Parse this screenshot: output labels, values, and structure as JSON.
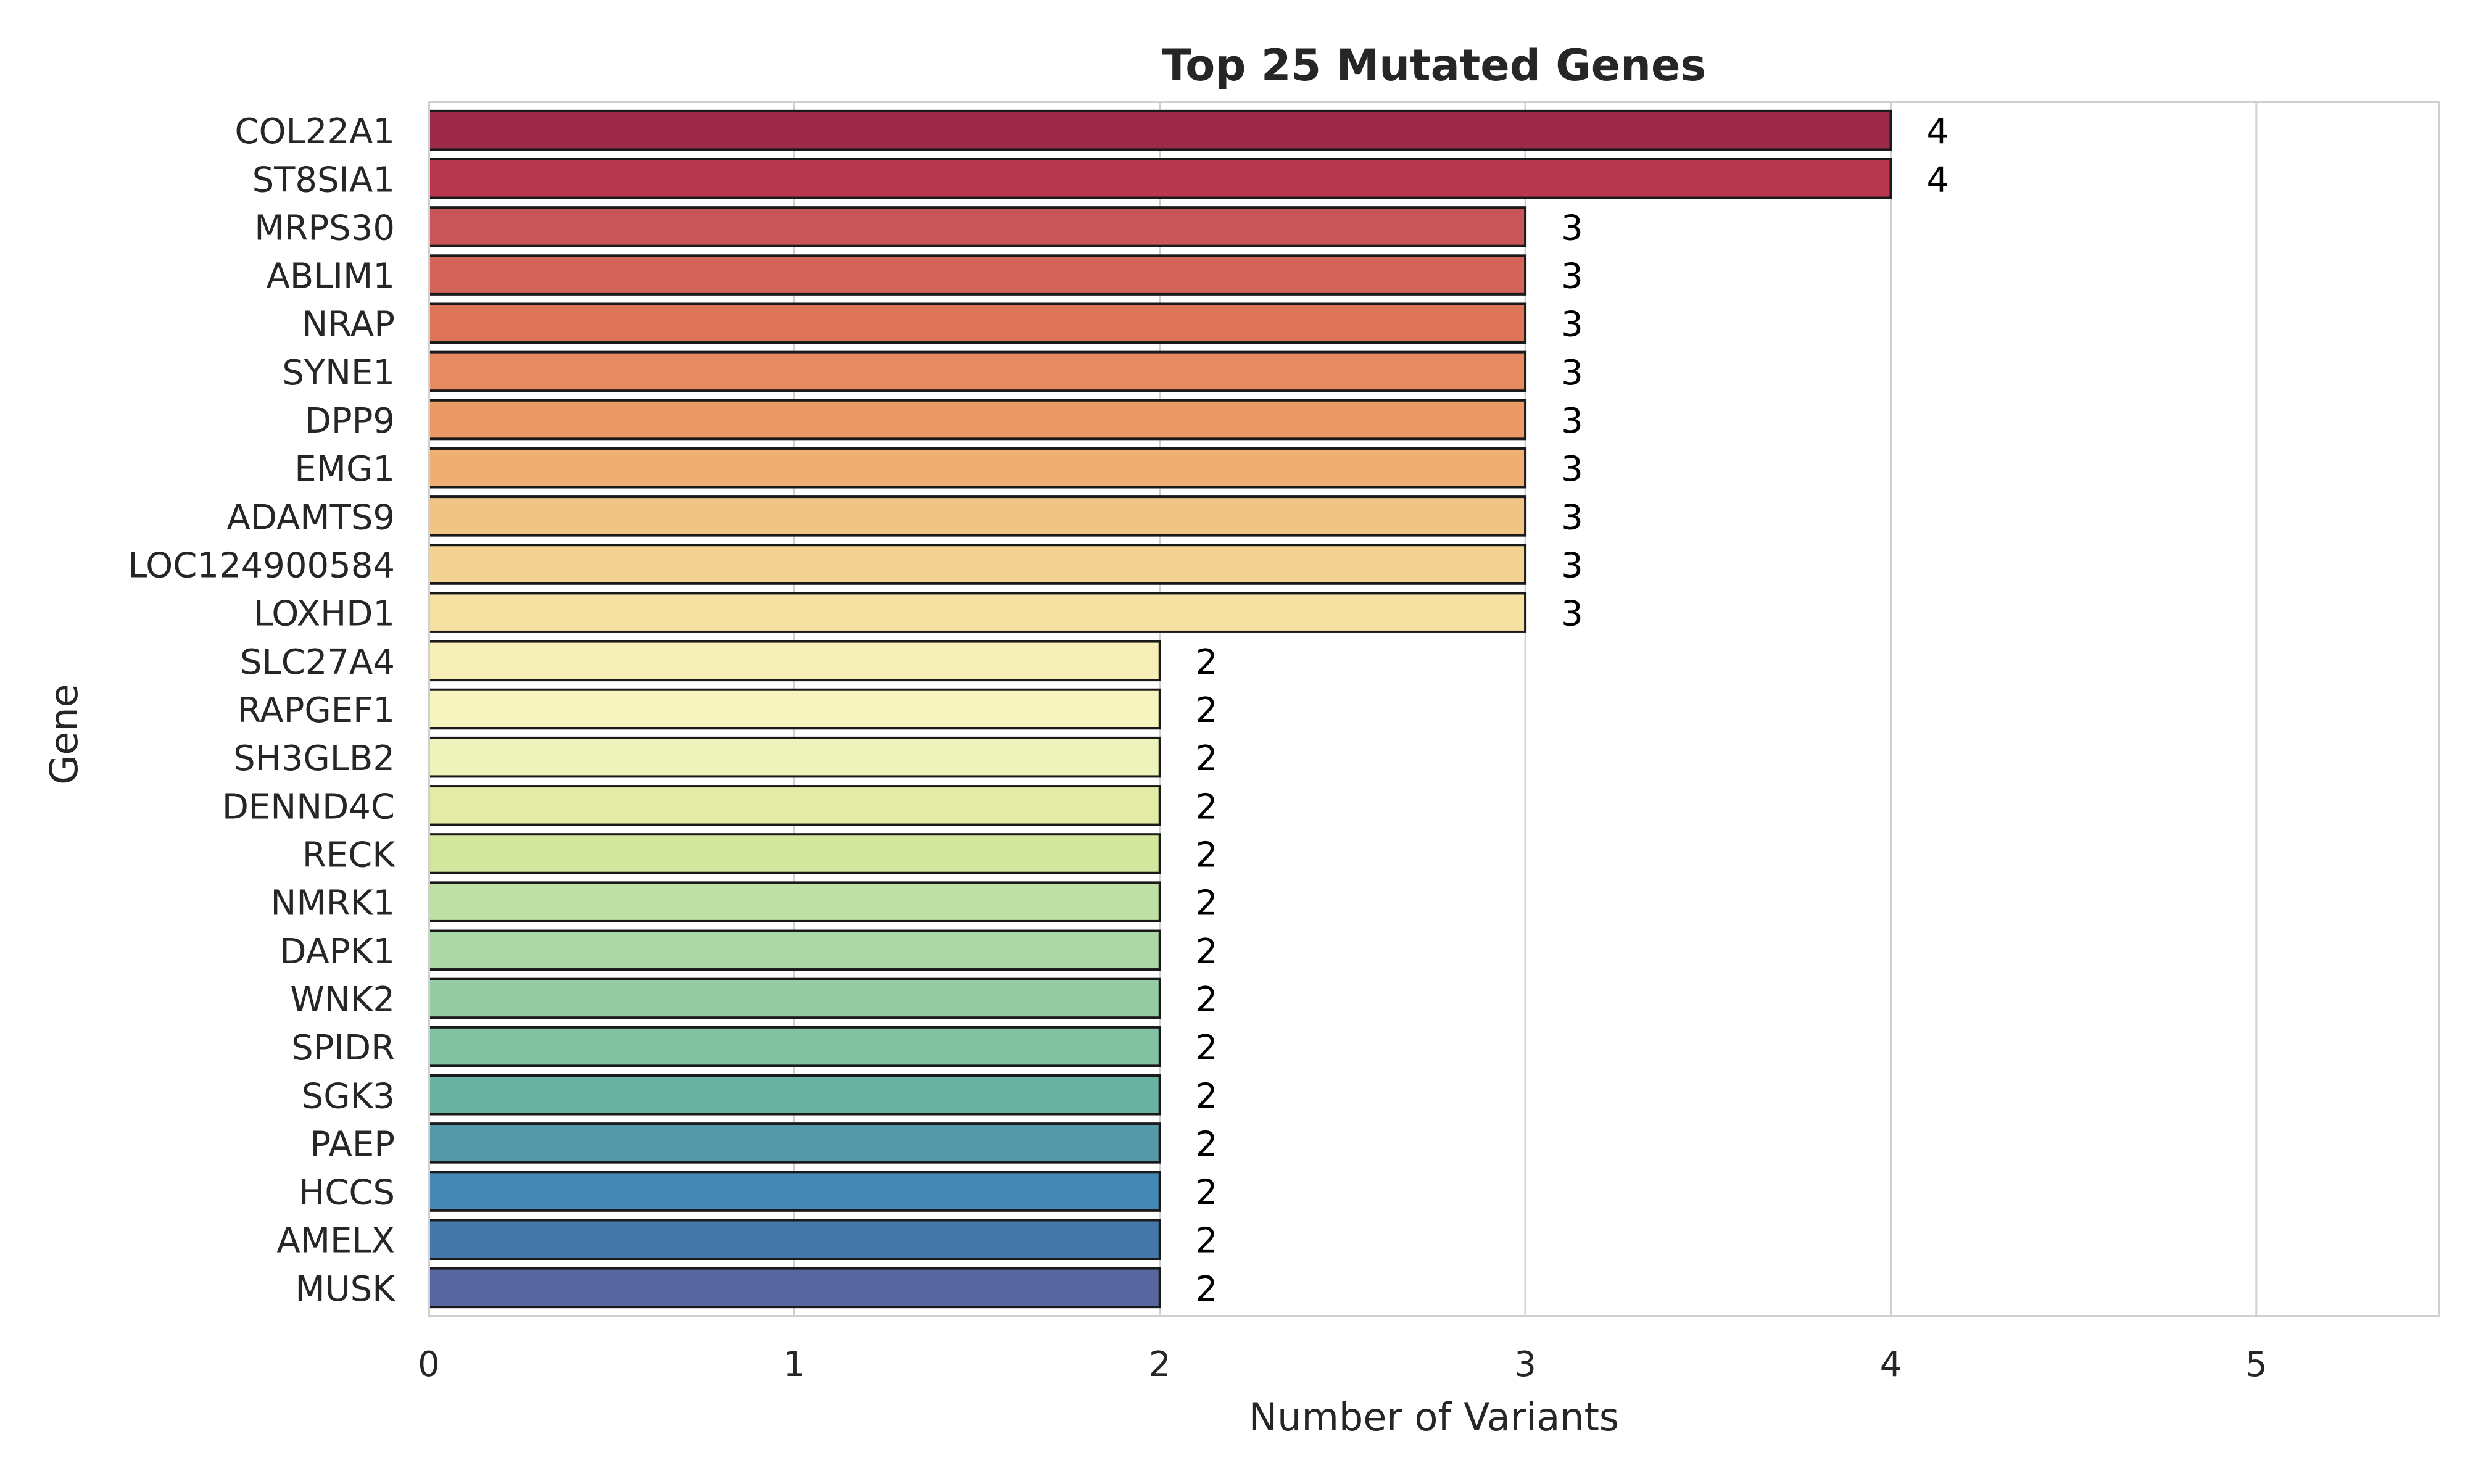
{
  "chart_data": {
    "type": "bar",
    "orientation": "horizontal",
    "title": "Top 25 Mutated Genes",
    "xlabel": "Number of Variants",
    "ylabel": "Gene",
    "xlim": [
      0,
      5.5
    ],
    "xticks": [
      0,
      1,
      2,
      3,
      4,
      5
    ],
    "grid": "vertical",
    "categories": [
      "COL22A1",
      "ST8SIA1",
      "MRPS30",
      "ABLIM1",
      "NRAP",
      "SYNE1",
      "DPP9",
      "EMG1",
      "ADAMTS9",
      "LOC124900584",
      "LOXHD1",
      "SLC27A4",
      "RAPGEF1",
      "SH3GLB2",
      "DENND4C",
      "RECK",
      "NMRK1",
      "DAPK1",
      "WNK2",
      "SPIDR",
      "SGK3",
      "PAEP",
      "HCCS",
      "AMELX",
      "MUSK"
    ],
    "values": [
      4,
      4,
      3,
      3,
      3,
      3,
      3,
      3,
      3,
      3,
      3,
      2,
      2,
      2,
      2,
      2,
      2,
      2,
      2,
      2,
      2,
      2,
      2,
      2,
      2
    ],
    "data_labels": [
      "4",
      "4",
      "3",
      "3",
      "3",
      "3",
      "3",
      "3",
      "3",
      "3",
      "3",
      "2",
      "2",
      "2",
      "2",
      "2",
      "2",
      "2",
      "2",
      "2",
      "2",
      "2",
      "2",
      "2",
      "2"
    ],
    "colors": [
      "#9e2a4a",
      "#b8384f",
      "#c85558",
      "#d4635a",
      "#de755a",
      "#e68a62",
      "#eb9a66",
      "#efae72",
      "#f0c485",
      "#f4d392",
      "#f5e2a2",
      "#f7f0b6",
      "#f6f5c0",
      "#eef2bb",
      "#e3eba6",
      "#d3e69d",
      "#bfe0a4",
      "#abd8a6",
      "#95cca3",
      "#82c2a3",
      "#69b1a0",
      "#5598a7",
      "#4488b6",
      "#4677ab",
      "#59659f"
    ],
    "bar_edge_color": "#1a1a1a",
    "grid_color": "#d0d0d0",
    "text_color": "#262626"
  }
}
